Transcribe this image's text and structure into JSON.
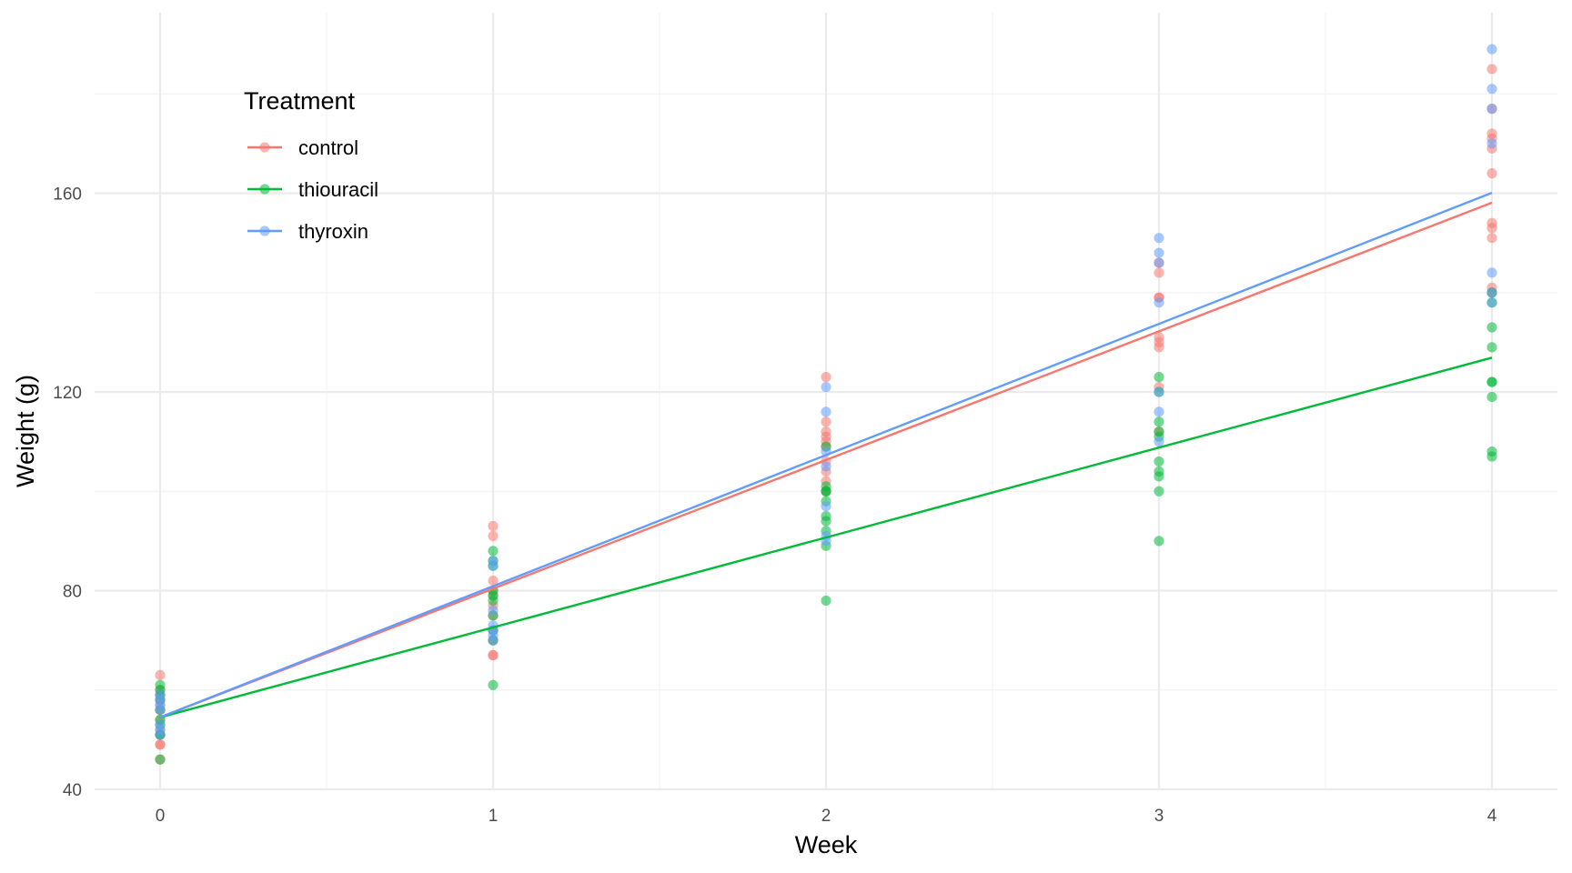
{
  "chart_data": {
    "type": "scatter",
    "title": "",
    "xlabel": "Week",
    "ylabel": "Weight (g)",
    "xlim": [
      -0.2,
      4.2
    ],
    "ylim": [
      39,
      194
    ],
    "x_ticks": [
      0,
      1,
      2,
      3,
      4
    ],
    "y_ticks": [
      40,
      80,
      120,
      160
    ],
    "grid": true,
    "legend": {
      "title": "Treatment",
      "placement": "top-left inside"
    },
    "series": [
      {
        "name": "control",
        "color": "#F8766D",
        "fit": {
          "intercept": 54.5,
          "slope": 25.9
        },
        "points": [
          [
            0,
            63
          ],
          [
            0,
            60
          ],
          [
            0,
            59
          ],
          [
            0,
            58
          ],
          [
            0,
            57
          ],
          [
            0,
            56
          ],
          [
            0,
            54
          ],
          [
            0,
            52
          ],
          [
            0,
            51
          ],
          [
            0,
            49
          ],
          [
            0,
            49
          ],
          [
            0,
            46
          ],
          [
            1,
            93
          ],
          [
            1,
            91
          ],
          [
            1,
            82
          ],
          [
            1,
            80
          ],
          [
            1,
            79
          ],
          [
            1,
            77
          ],
          [
            1,
            75
          ],
          [
            1,
            72
          ],
          [
            1,
            70
          ],
          [
            1,
            67
          ],
          [
            1,
            67
          ],
          [
            2,
            123
          ],
          [
            2,
            114
          ],
          [
            2,
            112
          ],
          [
            2,
            111
          ],
          [
            2,
            110
          ],
          [
            2,
            109
          ],
          [
            2,
            106
          ],
          [
            2,
            104
          ],
          [
            2,
            102
          ],
          [
            2,
            100
          ],
          [
            3,
            146
          ],
          [
            3,
            144
          ],
          [
            3,
            139
          ],
          [
            3,
            139
          ],
          [
            3,
            131
          ],
          [
            3,
            130
          ],
          [
            3,
            129
          ],
          [
            3,
            121
          ],
          [
            3,
            112
          ],
          [
            4,
            185
          ],
          [
            4,
            177
          ],
          [
            4,
            172
          ],
          [
            4,
            171
          ],
          [
            4,
            169
          ],
          [
            4,
            164
          ],
          [
            4,
            154
          ],
          [
            4,
            153
          ],
          [
            4,
            151
          ],
          [
            4,
            141
          ],
          [
            4,
            140
          ]
        ]
      },
      {
        "name": "thiouracil",
        "color": "#00BA38",
        "fit": {
          "intercept": 54.5,
          "slope": 18.1
        },
        "points": [
          [
            0,
            61
          ],
          [
            0,
            60
          ],
          [
            0,
            59
          ],
          [
            0,
            58
          ],
          [
            0,
            56
          ],
          [
            0,
            54
          ],
          [
            0,
            53
          ],
          [
            0,
            51
          ],
          [
            0,
            51
          ],
          [
            0,
            46
          ],
          [
            1,
            88
          ],
          [
            1,
            86
          ],
          [
            1,
            85
          ],
          [
            1,
            80
          ],
          [
            1,
            79
          ],
          [
            1,
            78
          ],
          [
            1,
            75
          ],
          [
            1,
            72
          ],
          [
            1,
            70
          ],
          [
            1,
            61
          ],
          [
            2,
            109
          ],
          [
            2,
            101
          ],
          [
            2,
            100
          ],
          [
            2,
            100
          ],
          [
            2,
            98
          ],
          [
            2,
            95
          ],
          [
            2,
            94
          ],
          [
            2,
            92
          ],
          [
            2,
            89
          ],
          [
            2,
            78
          ],
          [
            3,
            123
          ],
          [
            3,
            120
          ],
          [
            3,
            114
          ],
          [
            3,
            112
          ],
          [
            3,
            111
          ],
          [
            3,
            106
          ],
          [
            3,
            104
          ],
          [
            3,
            103
          ],
          [
            3,
            100
          ],
          [
            3,
            90
          ],
          [
            4,
            133
          ],
          [
            4,
            129
          ],
          [
            4,
            122
          ],
          [
            4,
            122
          ],
          [
            4,
            119
          ],
          [
            4,
            108
          ],
          [
            4,
            107
          ],
          [
            4,
            140
          ],
          [
            4,
            138
          ]
        ]
      },
      {
        "name": "thyroxin",
        "color": "#619CFF",
        "fit": {
          "intercept": 54.5,
          "slope": 26.4
        },
        "points": [
          [
            0,
            59
          ],
          [
            0,
            58
          ],
          [
            0,
            57
          ],
          [
            0,
            56
          ],
          [
            0,
            53
          ],
          [
            0,
            52
          ],
          [
            0,
            51
          ],
          [
            1,
            86
          ],
          [
            1,
            85
          ],
          [
            1,
            76
          ],
          [
            1,
            73
          ],
          [
            1,
            72
          ],
          [
            1,
            71
          ],
          [
            1,
            70
          ],
          [
            2,
            121
          ],
          [
            2,
            116
          ],
          [
            2,
            108
          ],
          [
            2,
            105
          ],
          [
            2,
            97
          ],
          [
            2,
            91
          ],
          [
            2,
            90
          ],
          [
            3,
            151
          ],
          [
            3,
            148
          ],
          [
            3,
            146
          ],
          [
            3,
            138
          ],
          [
            3,
            120
          ],
          [
            3,
            116
          ],
          [
            3,
            110
          ],
          [
            4,
            189
          ],
          [
            4,
            181
          ],
          [
            4,
            177
          ],
          [
            4,
            170
          ],
          [
            4,
            144
          ],
          [
            4,
            140
          ],
          [
            4,
            138
          ]
        ]
      }
    ]
  }
}
